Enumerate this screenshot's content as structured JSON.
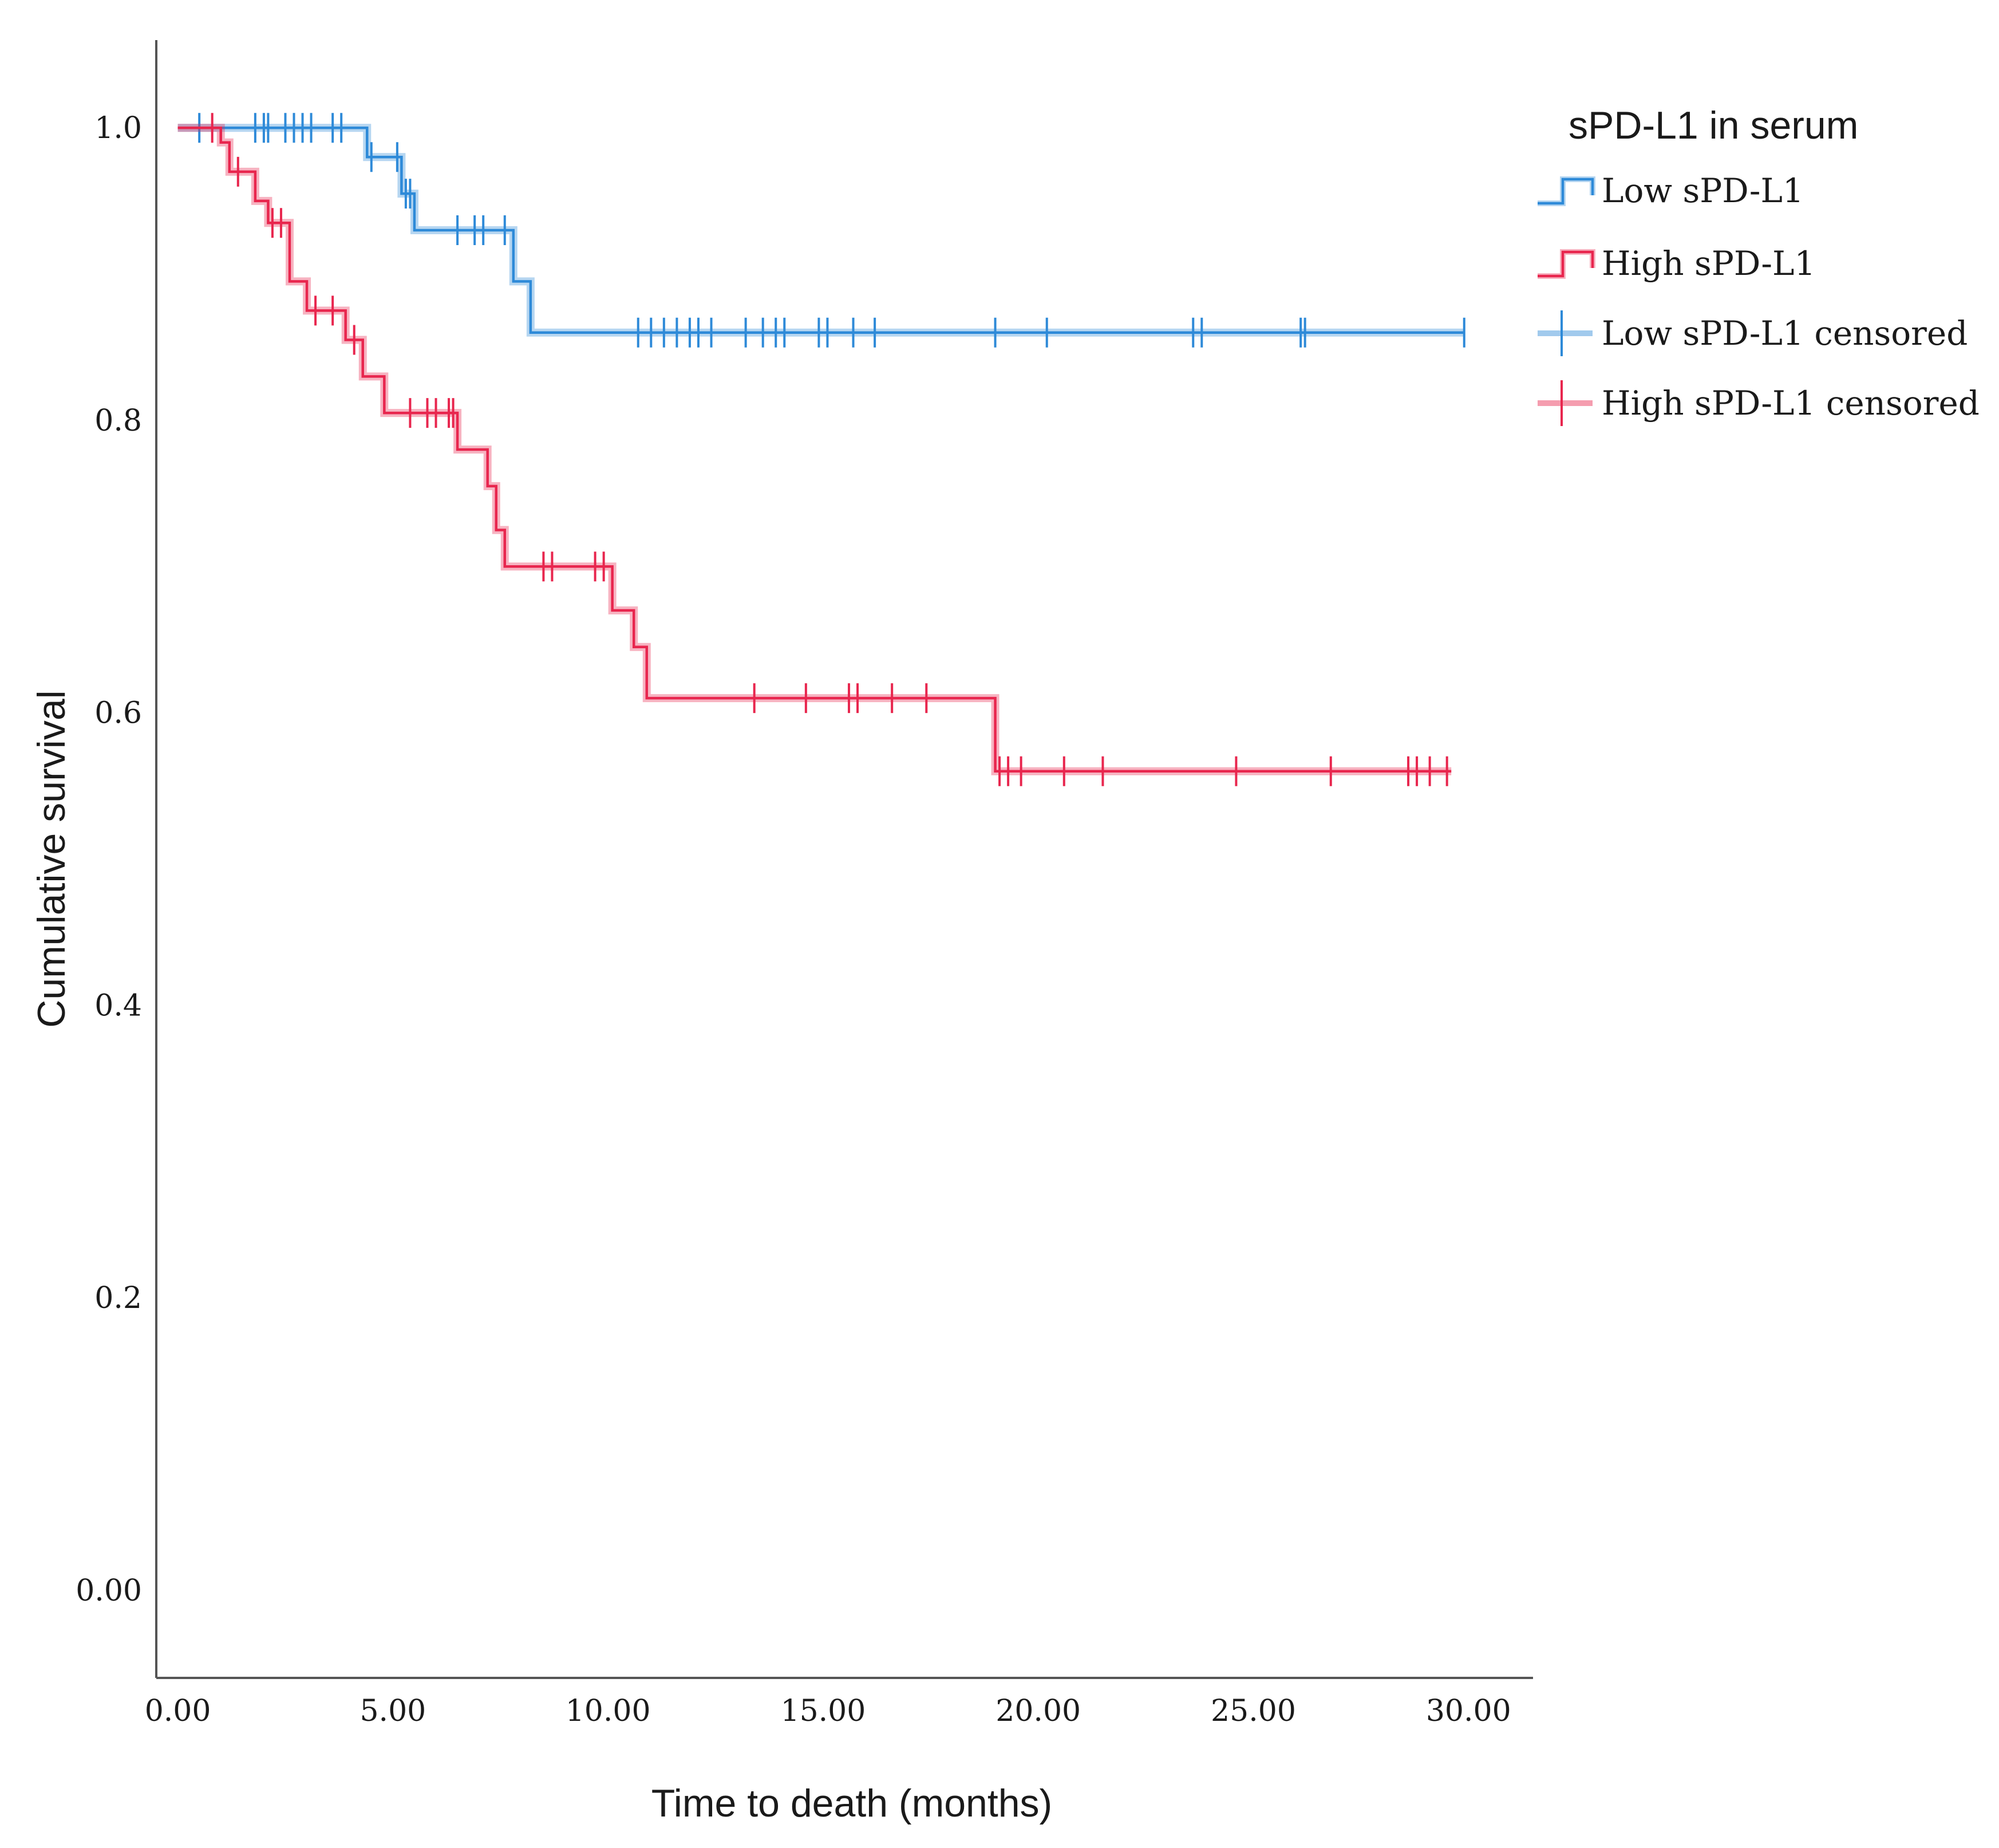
{
  "chart_data": {
    "type": "line",
    "subtype": "kaplan-meier survival curve",
    "xlabel": "Time to death (months)",
    "ylabel": "Cumulative survival",
    "xlim": [
      -0.5,
      31.5
    ],
    "ylim": [
      -0.06,
      1.06
    ],
    "x_ticks": [
      {
        "value": 0,
        "label": "0.00"
      },
      {
        "value": 5,
        "label": "5.00"
      },
      {
        "value": 10,
        "label": "10.00"
      },
      {
        "value": 15,
        "label": "15.00"
      },
      {
        "value": 20,
        "label": "20.00"
      },
      {
        "value": 25,
        "label": "25.00"
      },
      {
        "value": 30,
        "label": "30.00"
      }
    ],
    "y_ticks": [
      {
        "value": 0.0,
        "label": "0.00"
      },
      {
        "value": 0.2,
        "label": "0.2"
      },
      {
        "value": 0.4,
        "label": "0.4"
      },
      {
        "value": 0.6,
        "label": "0.6"
      },
      {
        "value": 0.8,
        "label": "0.8"
      },
      {
        "value": 1.0,
        "label": "1.0"
      }
    ],
    "grid": false,
    "legend": {
      "title": "sPD-L1 in serum",
      "placement": "top-right outside plot",
      "entries": [
        {
          "label": "Low sPD-L1",
          "kind": "line",
          "series": "Low sPD-L1"
        },
        {
          "label": "High sPD-L1",
          "kind": "line",
          "series": "High sPD-L1"
        },
        {
          "label": "Low sPD-L1 censored",
          "kind": "censor",
          "series": "Low sPD-L1"
        },
        {
          "label": "High sPD-L1 censored",
          "kind": "censor",
          "series": "High sPD-L1"
        }
      ]
    },
    "series": [
      {
        "name": "Low sPD-L1",
        "color": "#2e8ad8",
        "steps": [
          {
            "x": 0.0,
            "y": 1.0
          },
          {
            "x": 4.4,
            "y": 0.98
          },
          {
            "x": 5.2,
            "y": 0.955
          },
          {
            "x": 5.5,
            "y": 0.93
          },
          {
            "x": 7.8,
            "y": 0.895
          },
          {
            "x": 8.2,
            "y": 0.86
          }
        ],
        "end_x": 29.9,
        "censored": [
          0.5,
          1.8,
          2.0,
          2.1,
          2.5,
          2.7,
          2.9,
          3.1,
          3.6,
          3.8,
          4.5,
          5.1,
          5.3,
          5.4,
          6.5,
          6.9,
          7.1,
          7.6,
          10.7,
          11.0,
          11.3,
          11.6,
          11.9,
          12.1,
          12.4,
          13.2,
          13.6,
          13.9,
          14.1,
          14.9,
          15.1,
          15.7,
          16.2,
          19.0,
          20.2,
          23.6,
          23.8,
          26.1,
          26.2,
          29.9
        ]
      },
      {
        "name": "High sPD-L1",
        "color": "#e8264e",
        "steps": [
          {
            "x": 0.0,
            "y": 1.0
          },
          {
            "x": 1.0,
            "y": 0.99
          },
          {
            "x": 1.2,
            "y": 0.97
          },
          {
            "x": 1.8,
            "y": 0.95
          },
          {
            "x": 2.1,
            "y": 0.935
          },
          {
            "x": 2.6,
            "y": 0.895
          },
          {
            "x": 3.0,
            "y": 0.875
          },
          {
            "x": 3.9,
            "y": 0.855
          },
          {
            "x": 4.3,
            "y": 0.83
          },
          {
            "x": 4.8,
            "y": 0.805
          },
          {
            "x": 6.5,
            "y": 0.78
          },
          {
            "x": 7.2,
            "y": 0.755
          },
          {
            "x": 7.4,
            "y": 0.725
          },
          {
            "x": 7.6,
            "y": 0.7
          },
          {
            "x": 10.1,
            "y": 0.67
          },
          {
            "x": 10.6,
            "y": 0.645
          },
          {
            "x": 10.9,
            "y": 0.61
          },
          {
            "x": 19.0,
            "y": 0.56
          }
        ],
        "end_x": 29.6,
        "censored": [
          0.8,
          1.4,
          2.2,
          2.4,
          3.2,
          3.6,
          4.1,
          5.4,
          5.8,
          6.0,
          6.3,
          6.4,
          8.5,
          8.7,
          9.7,
          9.9,
          13.4,
          14.6,
          15.6,
          15.8,
          16.6,
          17.4,
          19.1,
          19.3,
          19.6,
          20.6,
          21.5,
          24.6,
          26.8,
          28.6,
          28.8,
          29.1,
          29.5
        ]
      }
    ]
  }
}
